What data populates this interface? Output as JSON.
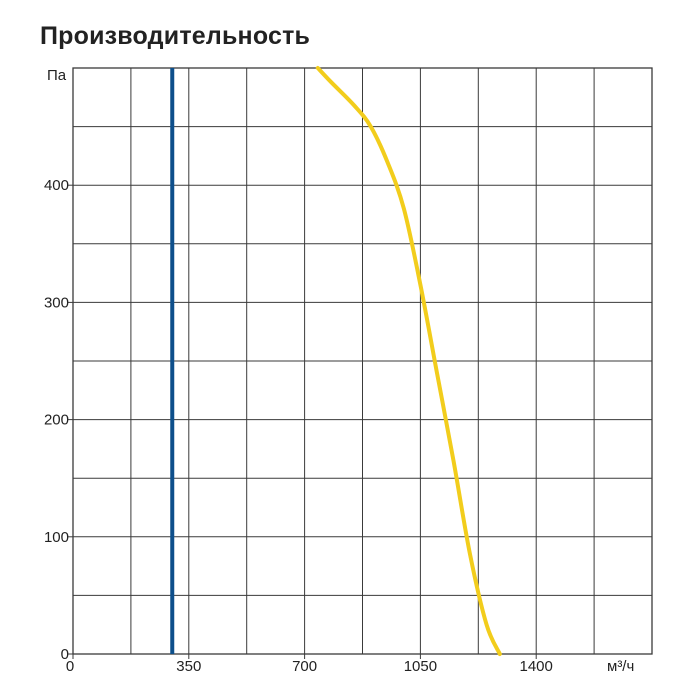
{
  "title": "Производительность",
  "chart_data": {
    "type": "line",
    "title": "Производительность",
    "xlabel": "м³/ч",
    "ylabel": "Па",
    "xlim": [
      0,
      1750
    ],
    "ylim": [
      0,
      500
    ],
    "x_ticks": [
      0,
      350,
      700,
      1050,
      1400
    ],
    "y_ticks": [
      0,
      100,
      200,
      300,
      400
    ],
    "x_tick_labels": [
      "0",
      "350",
      "700",
      "1050",
      "1400"
    ],
    "y_tick_labels": [
      "0",
      "100",
      "200",
      "300",
      "400"
    ],
    "grid": true,
    "series": [
      {
        "color": "#f2cd1c",
        "x": [
          740,
          780,
          850,
          900,
          950,
          1000,
          1050,
          1100,
          1150,
          1200,
          1250,
          1290
        ],
        "y": [
          500,
          488,
          468,
          450,
          420,
          380,
          315,
          240,
          165,
          85,
          25,
          0
        ]
      }
    ],
    "vertical_lines": [
      {
        "x": 300,
        "color": "#0d4f8b"
      }
    ]
  }
}
